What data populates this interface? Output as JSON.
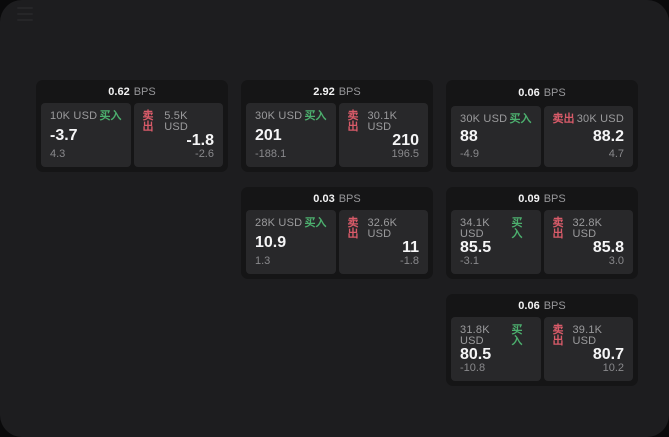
{
  "labels": {
    "bps_unit": "BPS",
    "buy": "买入",
    "sell": "卖出"
  },
  "colors": {
    "background": "#0a0a0b",
    "surface": "#1d1d1f",
    "card_bg": "#151516",
    "panel_bg": "#28282a",
    "buy_green": "#4caf6e",
    "sell_red": "#d95b69",
    "text_primary": "#f5f5f6",
    "text_secondary": "#9b9b9d",
    "text_dim": "#89898c"
  },
  "cards": [
    {
      "bps": "0.62",
      "buy": {
        "amount": "10K USD",
        "price": "-3.7",
        "delta": "4.3"
      },
      "sell": {
        "amount": "5.5K USD",
        "price": "-1.8",
        "delta": "-2.6"
      }
    },
    {
      "bps": "2.92",
      "buy": {
        "amount": "30K USD",
        "price": "201",
        "delta": "-188.1"
      },
      "sell": {
        "amount": "30.1K USD",
        "price": "210",
        "delta": "196.5"
      }
    },
    {
      "bps": "0.06",
      "buy": {
        "amount": "30K USD",
        "price": "88",
        "delta": "-4.9"
      },
      "sell": {
        "amount": "30K USD",
        "price": "88.2",
        "delta": "4.7"
      }
    },
    {
      "bps": "0.03",
      "buy": {
        "amount": "28K USD",
        "price": "10.9",
        "delta": "1.3"
      },
      "sell": {
        "amount": "32.6K USD",
        "price": "11",
        "delta": "-1.8"
      }
    },
    {
      "bps": "0.09",
      "buy": {
        "amount": "34.1K USD",
        "price": "85.5",
        "delta": "-3.1"
      },
      "sell": {
        "amount": "32.8K USD",
        "price": "85.8",
        "delta": "3.0"
      }
    },
    {
      "bps": "0.06",
      "buy": {
        "amount": "31.8K USD",
        "price": "80.5",
        "delta": "-10.8"
      },
      "sell": {
        "amount": "39.1K USD",
        "price": "80.7",
        "delta": "10.2"
      }
    }
  ]
}
